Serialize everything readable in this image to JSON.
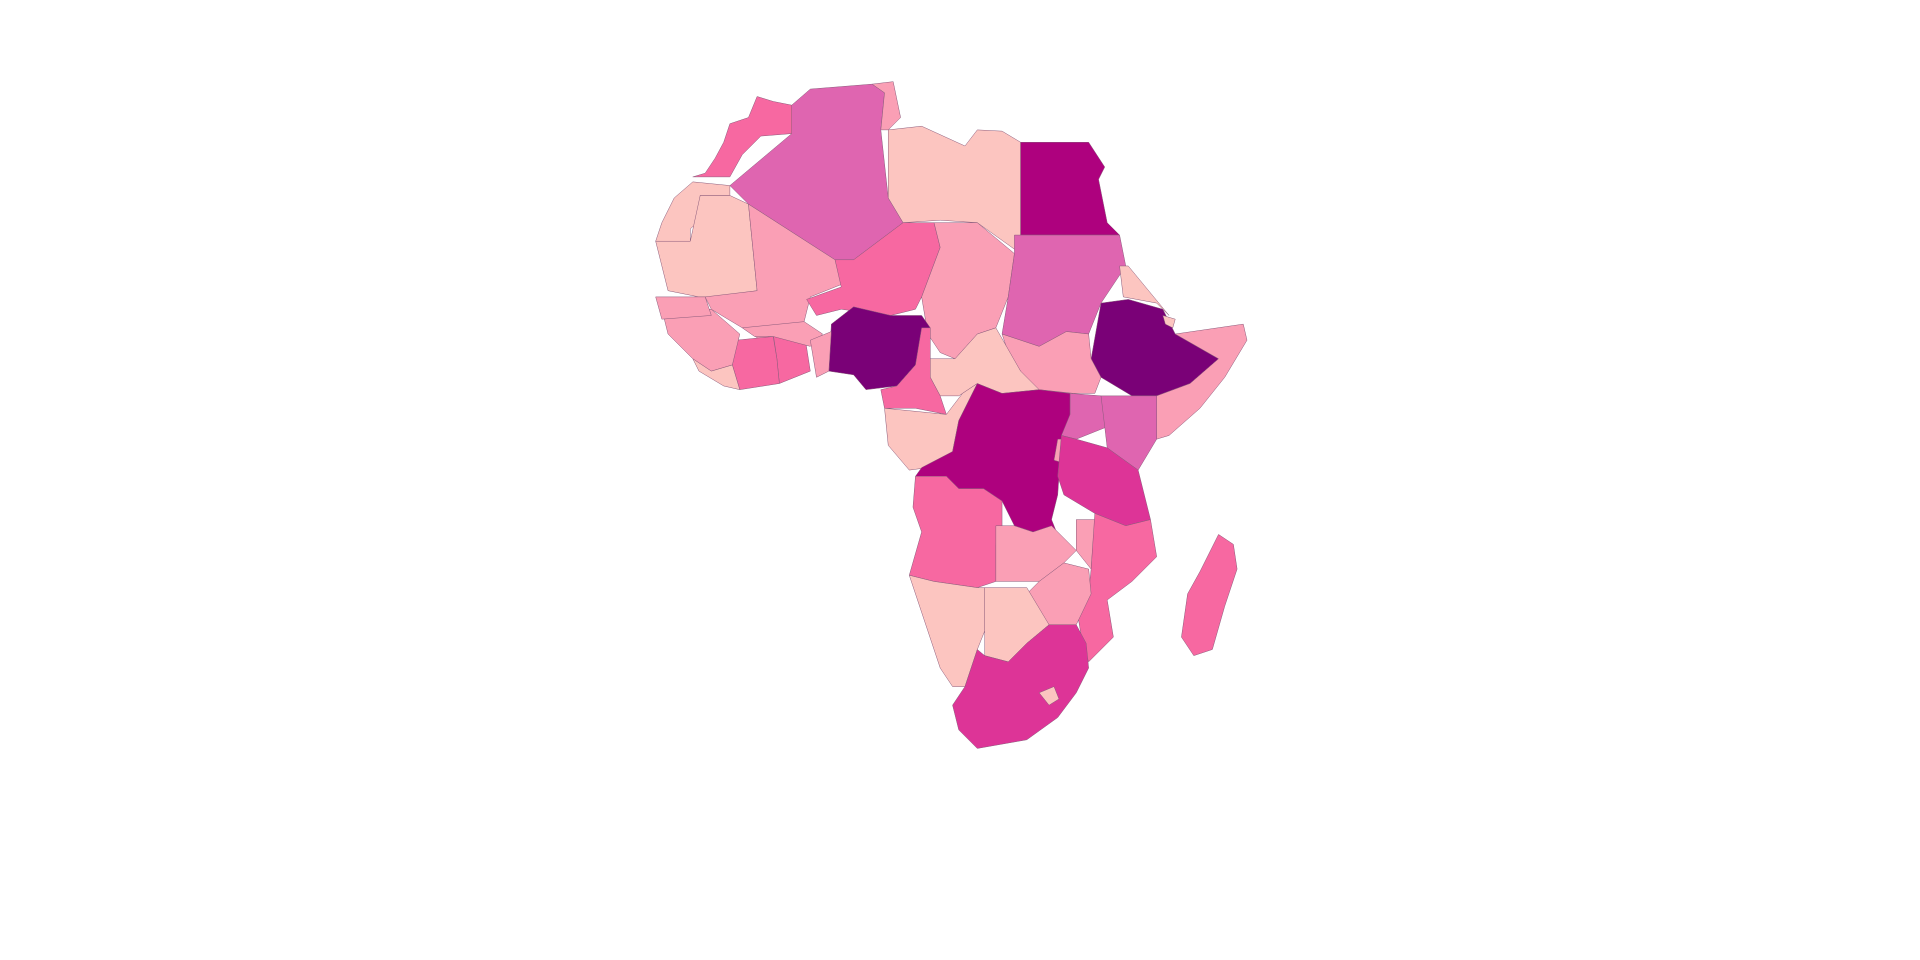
{
  "map": {
    "palette": [
      "#fcc5c0",
      "#fa9fb5",
      "#f768a1",
      "#df65b0",
      "#dd3497",
      "#ae017e",
      "#7a0177"
    ]
  }
}
